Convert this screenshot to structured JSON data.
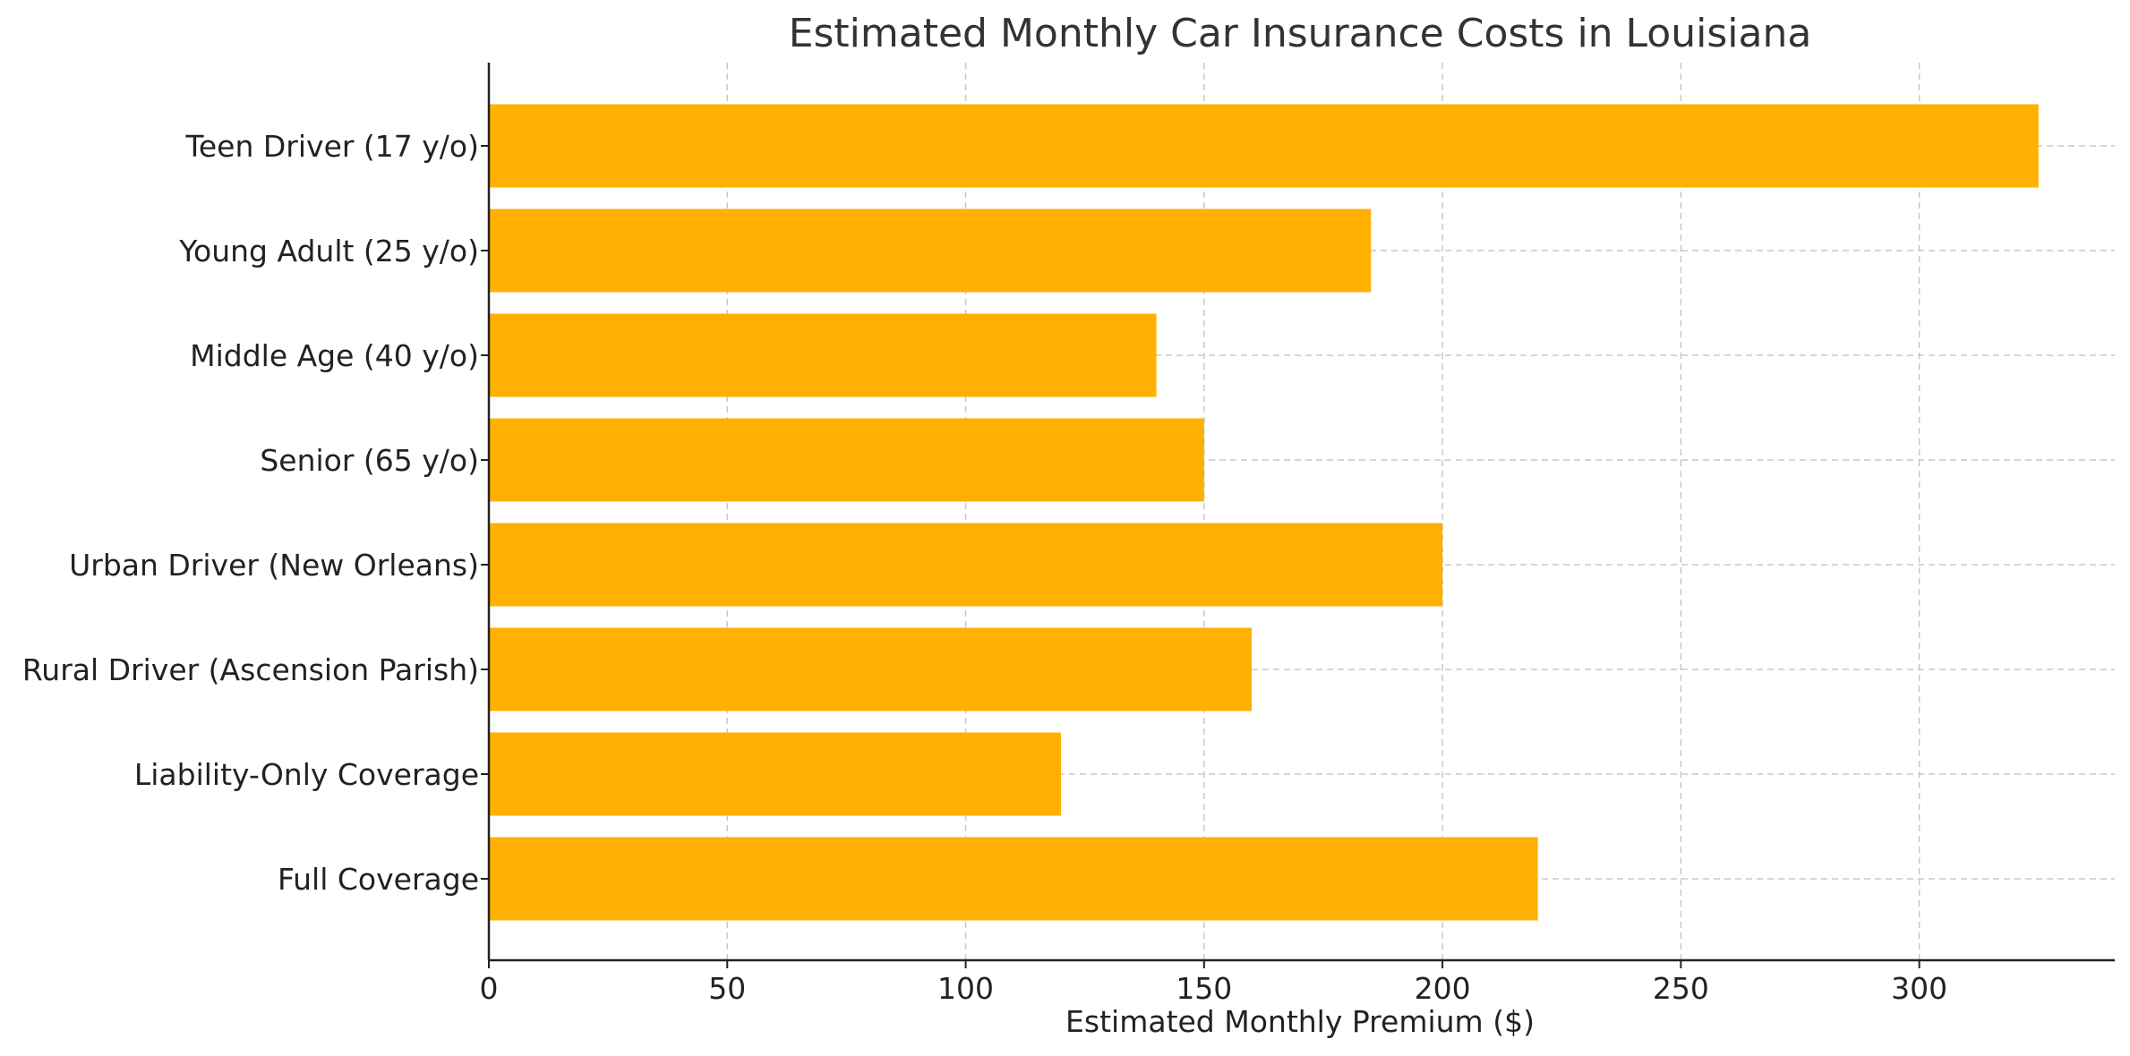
{
  "chart_data": {
    "type": "bar",
    "orientation": "horizontal",
    "title": "Estimated Monthly Car Insurance Costs in Louisiana",
    "xlabel": "Estimated Monthly Premium ($)",
    "ylabel": "",
    "categories": [
      "Teen Driver (17 y/o)",
      "Young Adult (25 y/o)",
      "Middle Age (40 y/o)",
      "Senior (65 y/o)",
      "Urban Driver (New Orleans)",
      "Rural Driver (Ascension Parish)",
      "Liability-Only Coverage",
      "Full Coverage"
    ],
    "values": [
      325,
      185,
      140,
      150,
      200,
      160,
      120,
      220
    ],
    "xlim": [
      0,
      341
    ],
    "x_ticks": [
      0,
      50,
      100,
      150,
      200,
      250,
      300
    ],
    "grid": true,
    "bar_color": "#FFB000"
  }
}
